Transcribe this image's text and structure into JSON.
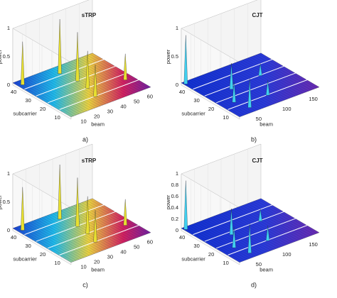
{
  "panels": [
    {
      "title": "sTRP",
      "zlabel": "power",
      "xlabel": "beam",
      "ylabel": "subcarrier",
      "label": "a)",
      "zticks": [
        0,
        0.5,
        1
      ],
      "yticks": [
        40,
        30,
        20,
        10
      ],
      "xticks": [
        10,
        20,
        30,
        40,
        50,
        60
      ]
    },
    {
      "title": "CJT",
      "zlabel": "power",
      "xlabel": "beam",
      "ylabel": "subcarrier",
      "label": "b)",
      "zticks": [
        0,
        0.5,
        1
      ],
      "yticks": [
        40,
        30,
        20,
        10
      ],
      "xticks": [
        50,
        100,
        150
      ]
    },
    {
      "title": "sTRP",
      "zlabel": "power",
      "xlabel": "beam",
      "ylabel": "subcarrier",
      "label": "c)",
      "zticks": [
        0,
        0.5,
        1
      ],
      "yticks": [
        40,
        30,
        20,
        10
      ],
      "xticks": [
        10,
        20,
        30,
        40,
        50,
        60
      ]
    },
    {
      "title": "CJT",
      "zlabel": "power",
      "xlabel": "beam",
      "ylabel": "subcarrier",
      "label": "d)",
      "zticks": [
        0,
        0.2,
        0.4,
        0.6,
        0.8,
        1
      ],
      "yticks": [
        40,
        30,
        20,
        10
      ],
      "xticks": [
        50,
        100,
        150
      ]
    }
  ]
}
